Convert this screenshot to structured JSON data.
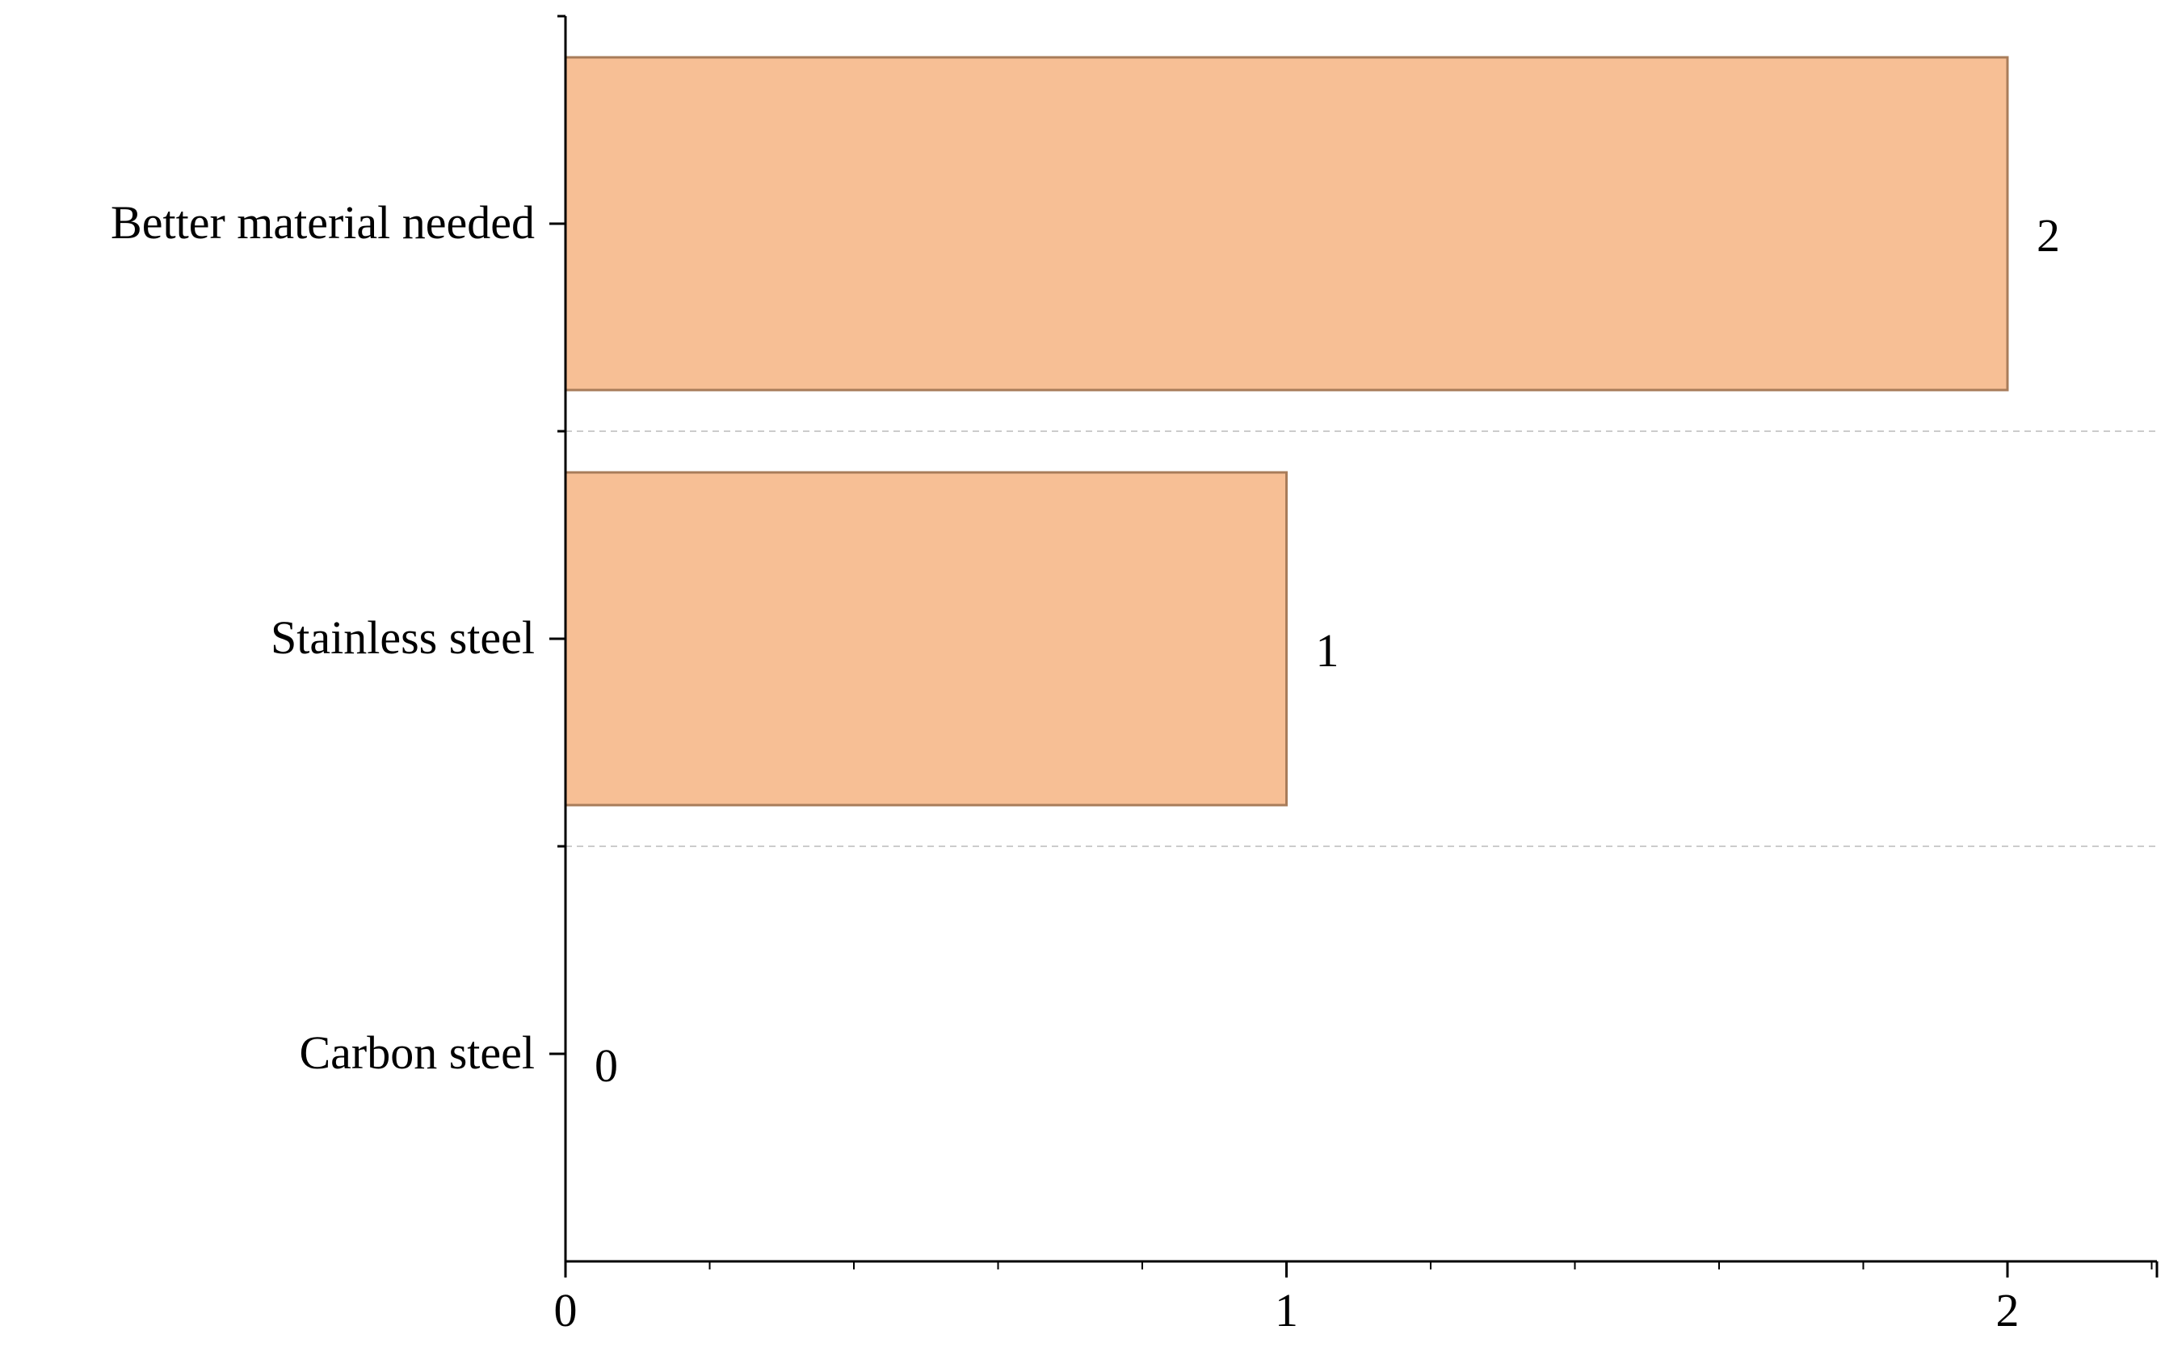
{
  "chart_data": {
    "type": "bar",
    "orientation": "horizontal",
    "categories": [
      "Carbon steel",
      "Stainless steel",
      "Better material needed"
    ],
    "values": [
      0,
      1,
      2
    ],
    "data_labels": [
      "0",
      "1",
      "2"
    ],
    "x_ticks": [
      "0",
      "1",
      "2"
    ],
    "xlim": [
      0,
      2.2
    ],
    "title": "",
    "xlabel": "",
    "ylabel": "",
    "grid": "dashed separators between categories",
    "legend": "none",
    "colors": {
      "bar_fill": "#f7bf95",
      "bar_stroke": "#a87c5a",
      "axis": "#000000",
      "separator": "#cccccc"
    }
  }
}
